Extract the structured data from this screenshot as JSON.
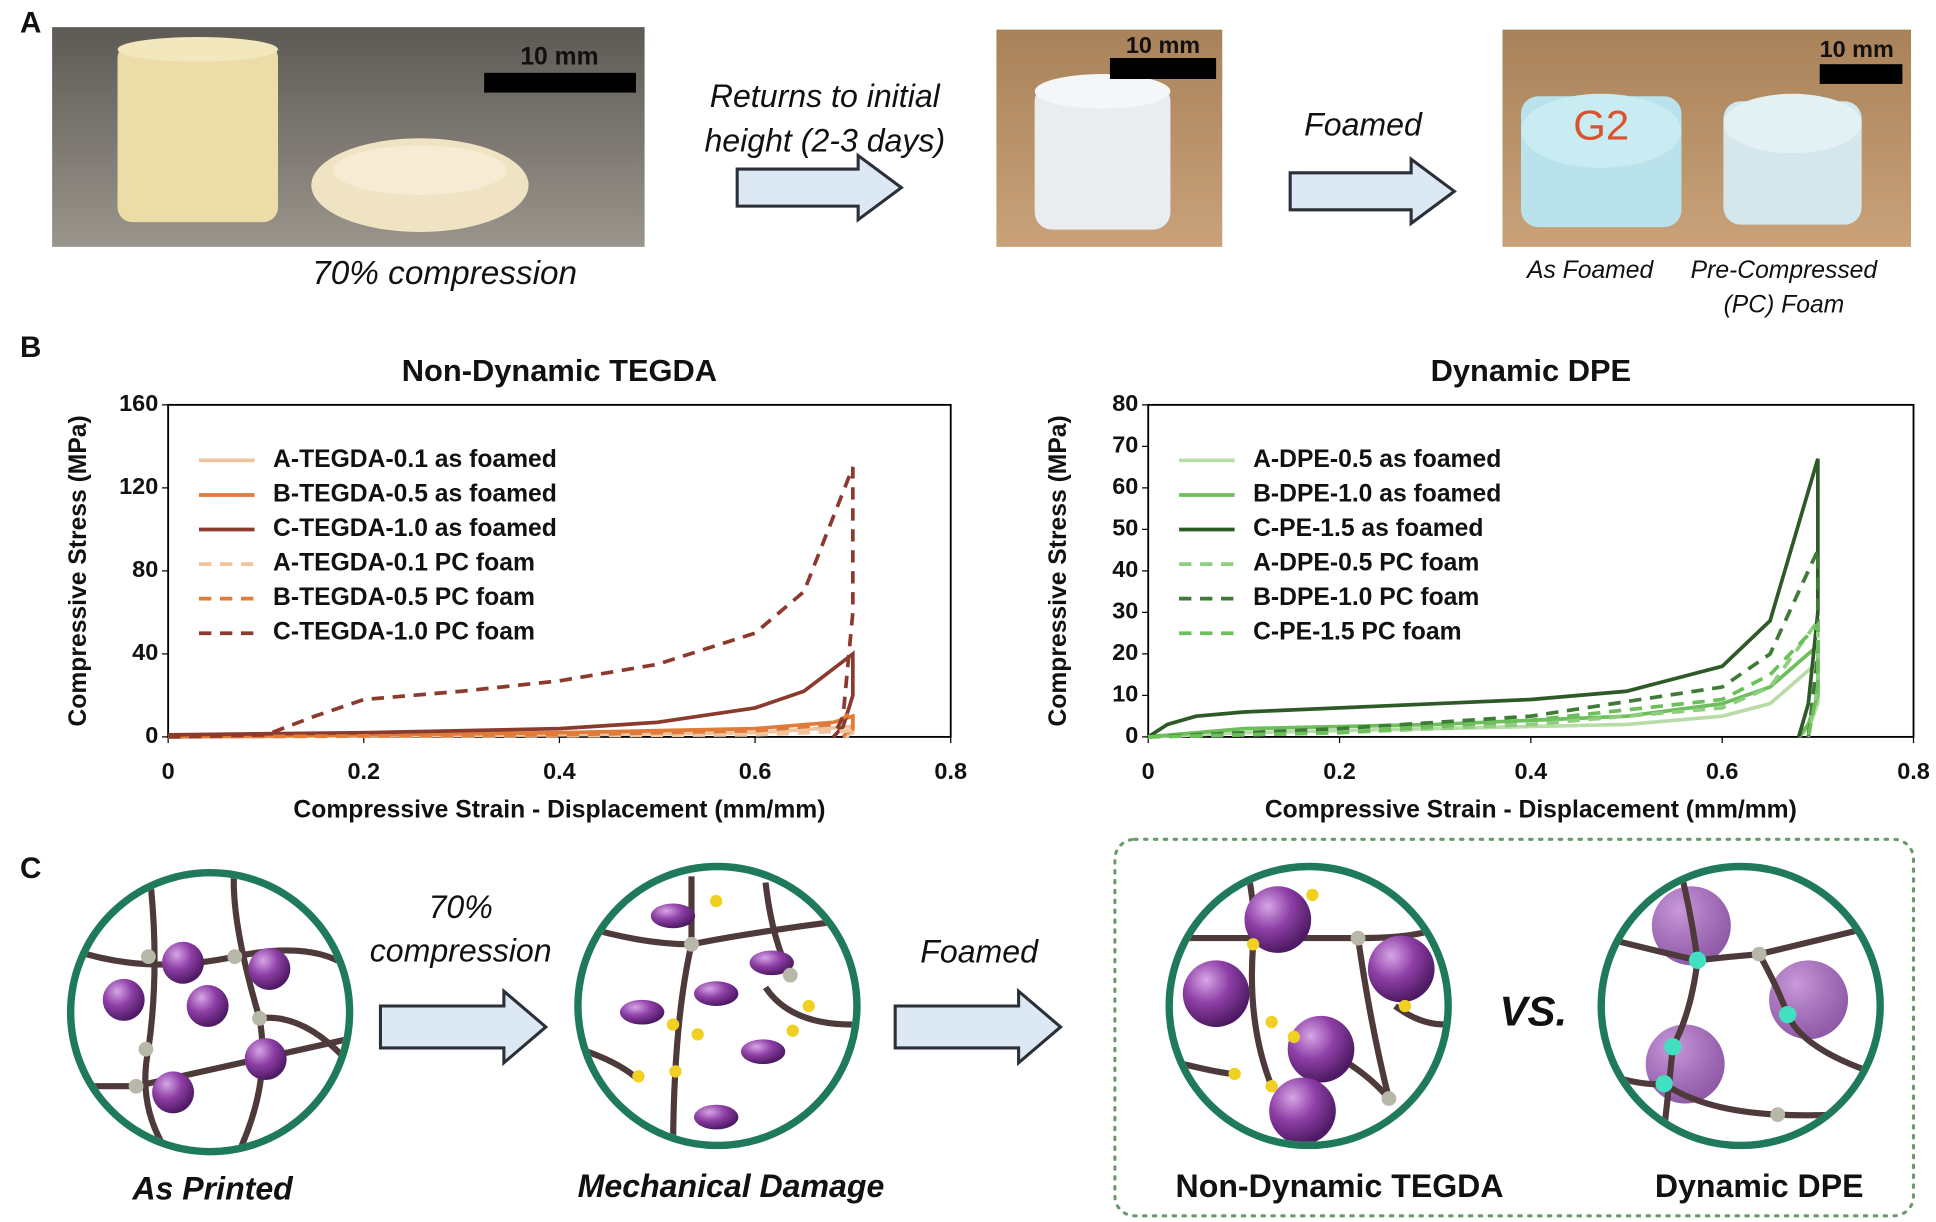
{
  "panel_labels": [
    "A",
    "B",
    "C"
  ],
  "panel_a": {
    "photo_1": {
      "scale_bar": "10 mm",
      "caption": "70% compression"
    },
    "arrow_1": [
      "Returns to initial",
      "height (2-3 days)"
    ],
    "photo_2": {
      "scale_bar": "10 mm"
    },
    "arrow_2": "Foamed",
    "photo_3": {
      "scale_bar": "10 mm",
      "sample_label": "G2",
      "captions": [
        "As Foamed",
        "Pre-Compressed",
        "(PC) Foam"
      ]
    }
  },
  "chart_data": [
    {
      "type": "line",
      "title": "Non-Dynamic TEGDA",
      "x_label": "Compressive Strain - Displacement (mm/mm)",
      "y_label": "Compressive Stress (MPa)",
      "xlim": [
        0,
        0.8
      ],
      "xticks": [
        0,
        0.2,
        0.4,
        0.6,
        0.8
      ],
      "ylim": [
        0,
        160
      ],
      "yticks": [
        0,
        40,
        80,
        120,
        160
      ],
      "legend": "upper left",
      "series": [
        {
          "name": "A-TEGDA-0.1 as foamed",
          "color": "#f0c49e",
          "style": "solid",
          "x": [
            0,
            0.2,
            0.4,
            0.6,
            0.7,
            0.7,
            0.69
          ],
          "values": [
            0,
            0.5,
            1,
            2,
            5,
            2,
            0
          ]
        },
        {
          "name": "B-TEGDA-0.5 as foamed",
          "color": "#e07b39",
          "style": "solid",
          "x": [
            0,
            0.2,
            0.4,
            0.6,
            0.68,
            0.7,
            0.7,
            0.69
          ],
          "values": [
            0,
            1,
            2,
            4,
            7,
            10,
            4,
            0
          ]
        },
        {
          "name": "C-TEGDA-1.0 as foamed",
          "color": "#8b3a2e",
          "style": "solid",
          "x": [
            0,
            0.2,
            0.4,
            0.5,
            0.6,
            0.65,
            0.7,
            0.7,
            0.69,
            0.68
          ],
          "values": [
            1,
            2,
            4,
            7,
            14,
            22,
            40,
            20,
            5,
            0
          ]
        },
        {
          "name": "A-TEGDA-0.1 PC foam",
          "color": "#f0c49e",
          "style": "dashed",
          "x": [
            0,
            0.2,
            0.4,
            0.6,
            0.7,
            0.7,
            0.69
          ],
          "values": [
            0,
            0.3,
            0.6,
            1,
            3,
            1,
            0
          ]
        },
        {
          "name": "B-TEGDA-0.5 PC foam",
          "color": "#e07b39",
          "style": "dashed",
          "x": [
            0,
            0.2,
            0.4,
            0.6,
            0.68,
            0.7,
            0.7,
            0.69
          ],
          "values": [
            0,
            0.5,
            1,
            3,
            6,
            12,
            5,
            0
          ]
        },
        {
          "name": "C-TEGDA-1.0 PC foam",
          "color": "#8b3a2e",
          "style": "dashed",
          "x": [
            0,
            0.1,
            0.15,
            0.2,
            0.3,
            0.4,
            0.5,
            0.6,
            0.65,
            0.7,
            0.7,
            0.69,
            0.68
          ],
          "values": [
            0,
            1,
            10,
            18,
            22,
            27,
            35,
            50,
            70,
            130,
            60,
            10,
            0
          ]
        }
      ]
    },
    {
      "type": "line",
      "title": "Dynamic DPE",
      "x_label": "Compressive Strain - Displacement (mm/mm)",
      "y_label": "Compressive Stress (MPa)",
      "xlim": [
        0,
        0.8
      ],
      "xticks": [
        0,
        0.2,
        0.4,
        0.6,
        0.8
      ],
      "ylim": [
        0,
        80
      ],
      "yticks": [
        0,
        10,
        20,
        30,
        40,
        50,
        60,
        70,
        80
      ],
      "legend": "upper left",
      "series": [
        {
          "name": "A-DPE-0.5 as foamed",
          "color": "#b8dca8",
          "style": "solid",
          "x": [
            0,
            0.1,
            0.3,
            0.5,
            0.6,
            0.65,
            0.7,
            0.7,
            0.69,
            0.68
          ],
          "values": [
            0,
            1,
            2,
            3,
            5,
            8,
            18,
            8,
            2,
            0
          ]
        },
        {
          "name": "B-DPE-1.0 as foamed",
          "color": "#6cbf5a",
          "style": "solid",
          "x": [
            0,
            0.1,
            0.3,
            0.5,
            0.6,
            0.65,
            0.7,
            0.7,
            0.69,
            0.68
          ],
          "values": [
            0,
            2,
            3,
            5,
            8,
            12,
            22,
            10,
            3,
            0
          ]
        },
        {
          "name": "C-PE-1.5 as foamed",
          "color": "#2d5a27",
          "style": "solid",
          "x": [
            0,
            0.02,
            0.05,
            0.1,
            0.2,
            0.3,
            0.4,
            0.5,
            0.6,
            0.65,
            0.7,
            0.7,
            0.69,
            0.68
          ],
          "values": [
            0,
            3,
            5,
            6,
            7,
            8,
            9,
            11,
            17,
            28,
            67,
            30,
            8,
            0
          ]
        },
        {
          "name": "A-DPE-0.5 PC foam",
          "color": "#8fce7e",
          "style": "dashed",
          "x": [
            0,
            0.2,
            0.4,
            0.6,
            0.65,
            0.7,
            0.7,
            0.69
          ],
          "values": [
            0,
            1,
            3,
            7,
            12,
            28,
            12,
            0
          ]
        },
        {
          "name": "B-DPE-1.0 PC foam",
          "color": "#3f7a36",
          "style": "dashed",
          "x": [
            0,
            0.2,
            0.4,
            0.6,
            0.65,
            0.7,
            0.7,
            0.69
          ],
          "values": [
            0,
            2,
            5,
            12,
            20,
            45,
            20,
            0
          ]
        },
        {
          "name": "C-PE-1.5 PC foam",
          "color": "#6cbf5a",
          "style": "dashed",
          "x": [
            0,
            0.2,
            0.4,
            0.6,
            0.65,
            0.7,
            0.7,
            0.69
          ],
          "values": [
            0,
            1,
            4,
            9,
            15,
            27,
            12,
            0
          ]
        }
      ]
    }
  ],
  "panel_c": {
    "arrow_1": [
      "70%",
      "compression"
    ],
    "arrow_2": "Foamed",
    "comparison": "VS.",
    "captions": [
      "As Printed",
      "Mechanical Damage",
      "Non-Dynamic TEGDA",
      "Dynamic DPE"
    ]
  }
}
